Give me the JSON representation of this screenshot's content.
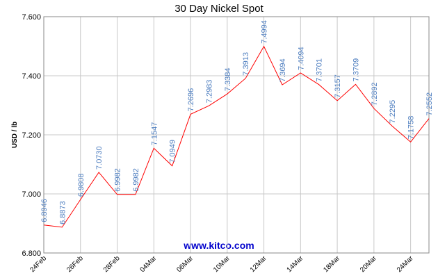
{
  "chart_data": {
    "type": "line",
    "title": "30 Day Nickel Spot",
    "y_label": "USD / lb",
    "watermark": "www.kitco.com",
    "categories": [
      "24Feb",
      null,
      "26Feb",
      null,
      "28Feb",
      null,
      "04Mar",
      null,
      "06Mar",
      null,
      "10Mar",
      null,
      "12Mar",
      null,
      "14Mar",
      null,
      "18Mar",
      null,
      "20Mar",
      null,
      "24Mar",
      null
    ],
    "series": [
      {
        "name": "Nickel",
        "color": "#ff0000",
        "values": [
          6.8946,
          6.8873,
          6.9808,
          7.073,
          6.9982,
          6.9982,
          7.1547,
          7.0949,
          7.2696,
          7.2983,
          7.3384,
          7.3913,
          7.4994,
          7.3694,
          7.4094,
          7.3701,
          7.3157,
          7.3709,
          7.2892,
          7.2295,
          7.1758,
          7.2552
        ],
        "value_labels": [
          "6.8946",
          "6.8873",
          "6.9808",
          "7.0730",
          "6.9982",
          "6.9982",
          "7.1547",
          "7.0949",
          "7.2696",
          "7.2983",
          "7.3384",
          "7.3913",
          "7.4994",
          "7.3694",
          "7.4094",
          "7.3701",
          "7.3157",
          "7.3709",
          "7.2892",
          "7.2295",
          "7.1758",
          "7.2552"
        ]
      }
    ],
    "ylim": [
      6.8,
      7.6
    ],
    "yticks": [
      {
        "value": 6.8,
        "label": "6.800"
      },
      {
        "value": 7.0,
        "label": "7.000"
      },
      {
        "value": 7.2,
        "label": "7.200"
      },
      {
        "value": 7.4,
        "label": "7.400"
      },
      {
        "value": 7.6,
        "label": "7.600"
      }
    ],
    "grid": true,
    "label_color": "#4f7fc0"
  }
}
